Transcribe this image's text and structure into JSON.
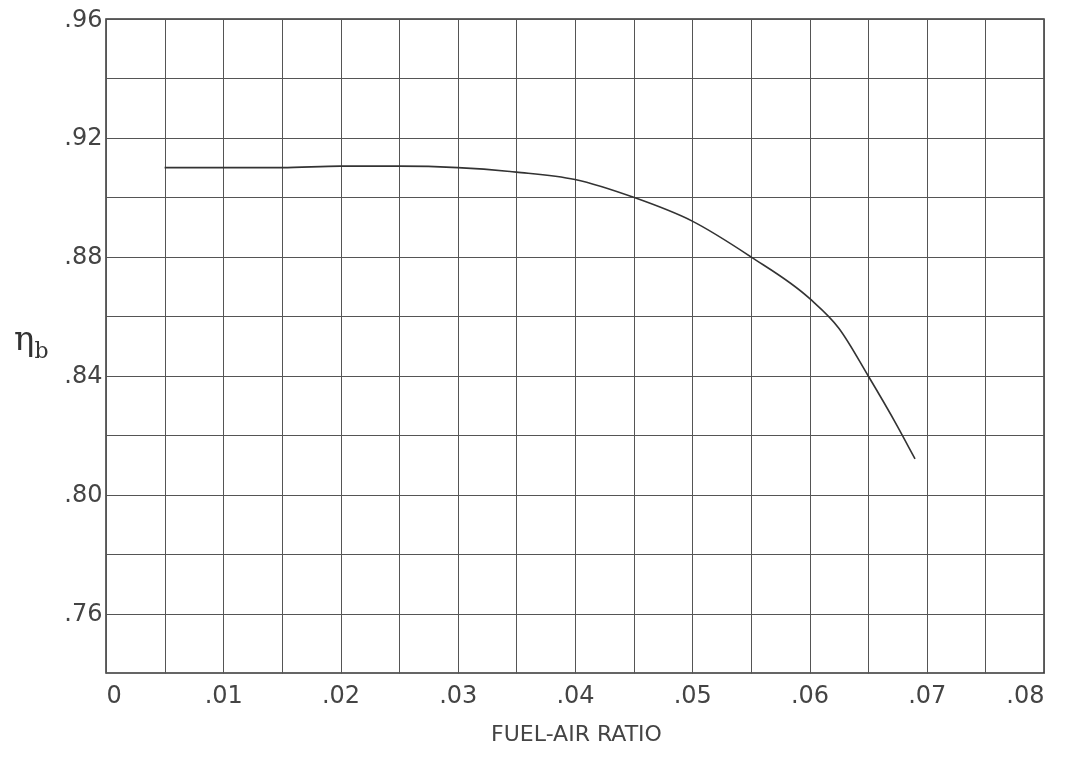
{
  "chart_data": {
    "type": "line",
    "xlabel": "FUEL-AIR RATIO",
    "ylabel": "η$_{b}$",
    "x": [
      0.005,
      0.01,
      0.015,
      0.02,
      0.025,
      0.03,
      0.035,
      0.04,
      0.045,
      0.05,
      0.055,
      0.06,
      0.0625,
      0.065,
      0.0675,
      0.069
    ],
    "series": [
      {
        "color": "#333333",
        "values": [
          0.91,
          0.91,
          0.91,
          0.9105,
          0.9105,
          0.91,
          0.9085,
          0.906,
          0.9,
          0.892,
          0.88,
          0.866,
          0.856,
          0.84,
          0.823,
          0.812
        ]
      }
    ],
    "xlim": [
      0,
      0.08
    ],
    "xticks": [
      0,
      {
        "value": 0.005,
        "label": null
      },
      {
        "value": 0.01,
        "label": ".01"
      },
      {
        "value": 0.015,
        "label": null
      },
      {
        "value": 0.02,
        "label": ".02"
      },
      {
        "value": 0.025,
        "label": null
      },
      {
        "value": 0.03,
        "label": ".03"
      },
      {
        "value": 0.035,
        "label": null
      },
      {
        "value": 0.04,
        "label": ".04"
      },
      {
        "value": 0.045,
        "label": null
      },
      {
        "value": 0.05,
        "label": ".05"
      },
      {
        "value": 0.055,
        "label": null
      },
      {
        "value": 0.06,
        "label": ".06"
      },
      {
        "value": 0.065,
        "label": null
      },
      {
        "value": 0.07,
        "label": ".07"
      },
      {
        "value": 0.075,
        "label": null
      },
      {
        "value": 0.08,
        "label": ".08"
      }
    ],
    "ylim": [
      0.74,
      0.96
    ],
    "yticks": [
      {
        "value": 0.76,
        "label": ".76"
      },
      {
        "value": 0.78,
        "label": null
      },
      {
        "value": 0.8,
        "label": ".80"
      },
      {
        "value": 0.82,
        "label": null
      },
      {
        "value": 0.84,
        "label": ".84"
      },
      {
        "value": 0.86,
        "label": null
      },
      {
        "value": 0.88,
        "label": ".88"
      },
      {
        "value": 0.9,
        "label": null
      },
      {
        "value": 0.92,
        "label": ".92"
      },
      {
        "value": 0.94,
        "label": null
      },
      {
        "value": 0.96,
        "label": ".96"
      }
    ],
    "grid": true,
    "marker": "none",
    "line_style": "solid"
  }
}
